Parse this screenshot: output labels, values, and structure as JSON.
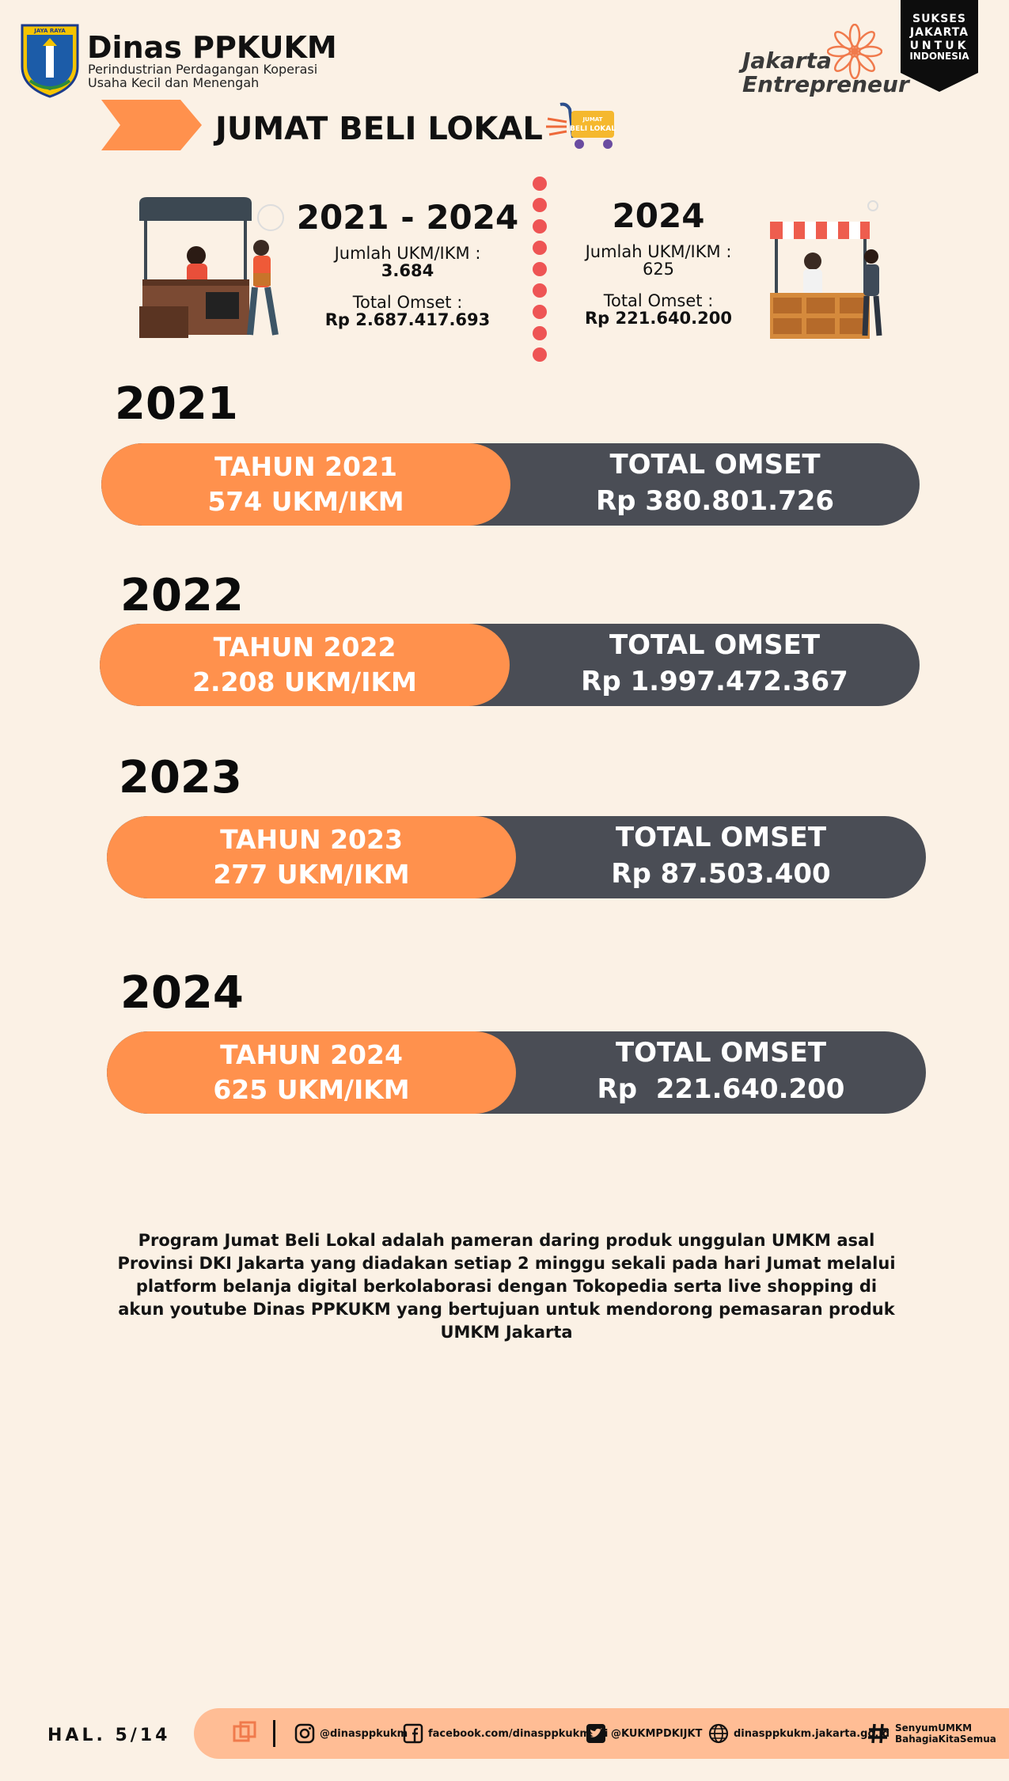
{
  "header": {
    "logo_text": "JAYA RAYA",
    "org_name": "Dinas PPKUKM",
    "org_sub_line1": "Perindustrian Perdagangan Koperasi",
    "org_sub_line2": "Usaha Kecil dan Menengah",
    "brand_line1": "Jakarta",
    "brand_line2": "Entrepreneur",
    "badge_lines": [
      "SUKSES",
      "JAKARTA",
      "UNTUK",
      "INDONESIA"
    ]
  },
  "title": {
    "text": "JUMAT BELI LOKAL",
    "cart_label": "JUMAT BELI LOKAL",
    "cart_icon": "shopping-cart-icon"
  },
  "summary": {
    "left": {
      "period": "2021 - 2024",
      "count_label": "Jumlah UKM/IKM :",
      "count_value": "3.684",
      "omset_label": "Total Omset :",
      "omset_value": "Rp 2.687.417.693"
    },
    "right": {
      "period": "2024",
      "count_label": "Jumlah UKM/IKM :",
      "count_value": "625",
      "omset_label": "Total Omset :",
      "omset_value": "Rp 221.640.200"
    }
  },
  "years": [
    {
      "heading": "2021",
      "tahun": "TAHUN 2021",
      "ukm": "574 UKM/IKM",
      "omset_label": "TOTAL OMSET",
      "omset": "Rp 380.801.726"
    },
    {
      "heading": "2022",
      "tahun": "TAHUN 2022",
      "ukm": "2.208 UKM/IKM",
      "omset_label": "TOTAL OMSET",
      "omset": "Rp 1.997.472.367"
    },
    {
      "heading": "2023",
      "tahun": "TAHUN 2023",
      "ukm": "277 UKM/IKM",
      "omset_label": "TOTAL OMSET",
      "omset": "Rp 87.503.400"
    },
    {
      "heading": "2024",
      "tahun": "TAHUN 2024",
      "ukm": "625 UKM/IKM",
      "omset_label": "TOTAL OMSET",
      "omset": "Rp  221.640.200"
    }
  ],
  "description": "Program Jumat Beli Lokal adalah pameran daring produk unggulan UMKM asal Provinsi DKI Jakarta yang diadakan setiap 2 minggu sekali pada hari Jumat melalui platform belanja digital berkolaborasi dengan Tokopedia serta live shopping di akun youtube Dinas PPKUKM yang bertujuan untuk mendorong pemasaran produk UMKM Jakarta",
  "footer": {
    "page": "HAL. 5/14",
    "instagram": "@dinasppkukm",
    "facebook": "facebook.com/dinasppkukmdki",
    "twitter": "@KUKMPDKIJKT",
    "website": "dinasppkukm.jakarta.go.id",
    "hashtag_line1": "SenyumUMKM",
    "hashtag_line2": "BahagiaKitaSemua"
  },
  "colors": {
    "background": "#fbf1e5",
    "accent_orange": "#ff914d",
    "pill_dark": "#4a4d55",
    "footer_bar": "#ffbd95",
    "dot_red": "#ee5454"
  }
}
